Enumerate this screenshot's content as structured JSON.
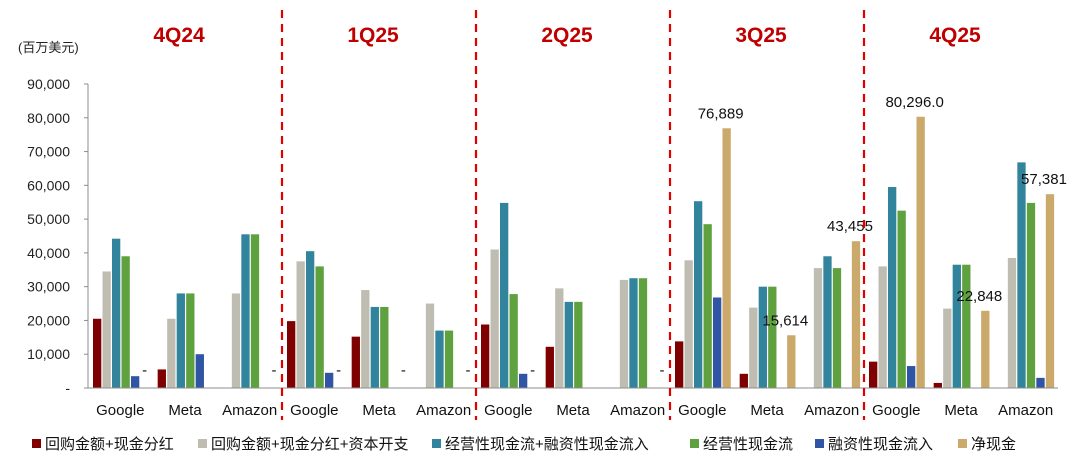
{
  "chart_data": {
    "type": "bar",
    "unit_label": "(百万美元)",
    "yticks": [
      "-",
      "10,000",
      "20,000",
      "30,000",
      "40,000",
      "50,000",
      "60,000",
      "70,000",
      "80,000",
      "90,000"
    ],
    "ylim": [
      0,
      90000
    ],
    "groups": [
      {
        "quarter": "4Q24",
        "companies": [
          {
            "name": "Google",
            "values": [
              20500,
              34500,
              44200,
              39000,
              3500,
              null
            ],
            "dash_label": "-"
          },
          {
            "name": "Meta",
            "values": [
              5500,
              20500,
              28000,
              28000,
              10000,
              null
            ],
            "dash_label": null
          },
          {
            "name": "Amazon",
            "values": [
              null,
              28000,
              45500,
              45500,
              null,
              null
            ],
            "dash_label": "-"
          }
        ]
      },
      {
        "quarter": "1Q25",
        "companies": [
          {
            "name": "Google",
            "values": [
              19800,
              37500,
              40500,
              36000,
              4500,
              null
            ],
            "dash_label": "-"
          },
          {
            "name": "Meta",
            "values": [
              15200,
              29000,
              24000,
              24000,
              null,
              null
            ],
            "dash_label": "-"
          },
          {
            "name": "Amazon",
            "values": [
              null,
              25000,
              17000,
              17000,
              null,
              null
            ],
            "dash_label": "-"
          }
        ]
      },
      {
        "quarter": "2Q25",
        "companies": [
          {
            "name": "Google",
            "values": [
              18800,
              41000,
              54800,
              27800,
              4200,
              null
            ],
            "dash_label": "-"
          },
          {
            "name": "Meta",
            "values": [
              12200,
              29500,
              25500,
              25500,
              null,
              null
            ],
            "dash_label": null
          },
          {
            "name": "Amazon",
            "values": [
              null,
              32000,
              32500,
              32500,
              null,
              null
            ],
            "dash_label": "-"
          }
        ]
      },
      {
        "quarter": "3Q25",
        "companies": [
          {
            "name": "Google",
            "values": [
              13800,
              37800,
              55300,
              48500,
              26800,
              76889
            ],
            "net_label": "76,889"
          },
          {
            "name": "Meta",
            "values": [
              4200,
              23800,
              30000,
              30000,
              null,
              15614
            ],
            "net_label": "15,614"
          },
          {
            "name": "Amazon",
            "values": [
              null,
              35500,
              39000,
              35500,
              null,
              43455
            ],
            "net_label": "43,455"
          }
        ]
      },
      {
        "quarter": "4Q25",
        "companies": [
          {
            "name": "Google",
            "values": [
              7800,
              36000,
              59500,
              52500,
              6500,
              80296
            ],
            "net_label": "80,296.0"
          },
          {
            "name": "Meta",
            "values": [
              1500,
              23500,
              36500,
              36500,
              null,
              22848
            ],
            "net_label": "22,848"
          },
          {
            "name": "Amazon",
            "values": [
              null,
              38500,
              66800,
              54800,
              3000,
              57381
            ],
            "net_label": "57,381"
          }
        ]
      }
    ],
    "series": [
      {
        "name": "回购金额+现金分红",
        "color": "#7f0000"
      },
      {
        "name": "回购金额+现金分红+资本开支",
        "color": "#bfbdb2"
      },
      {
        "name": "经营性现金流+融资性现金流入",
        "color": "#31849b"
      },
      {
        "name": "经营性现金流",
        "color": "#5fa13f"
      },
      {
        "name": "融资性现金流入",
        "color": "#2f55a4"
      },
      {
        "name": "净现金",
        "color": "#caa96b"
      }
    ],
    "separator_color": "#e00000"
  }
}
